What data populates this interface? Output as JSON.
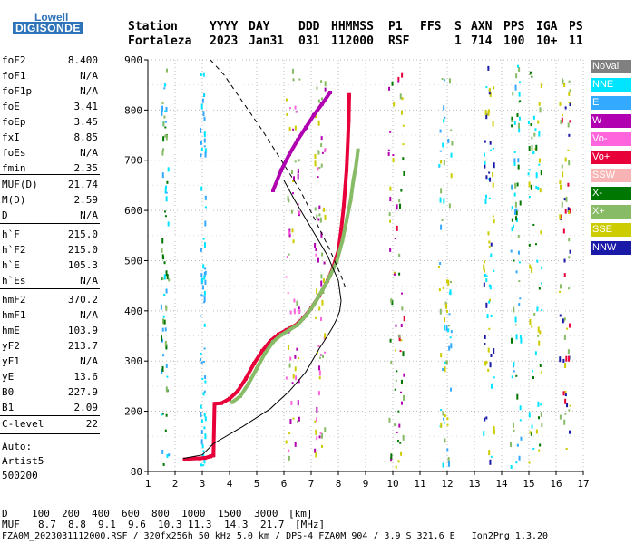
{
  "logo": {
    "line1": "Lowell",
    "line2": "DIGISONDE"
  },
  "header": {
    "col_station": {
      "label": "Station",
      "value": "Fortaleza"
    },
    "col_yyyy": {
      "label": "YYYY",
      "value": "2023"
    },
    "col_day": {
      "label": "DAY",
      "value": "Jan31"
    },
    "col_ddd": {
      "label": "DDD",
      "value": "031"
    },
    "col_hhmmss": {
      "label": "HHMMSS",
      "value": "112000"
    },
    "col_p1": {
      "label": "P1",
      "value": "RSF"
    },
    "col_ffs": {
      "label": "FFS",
      "value": ""
    },
    "col_s": {
      "label": "S",
      "value": "1"
    },
    "col_axn": {
      "label": "AXN",
      "value": "714"
    },
    "col_pps": {
      "label": "PPS",
      "value": "100"
    },
    "col_iga": {
      "label": "IGA",
      "value": "10+"
    },
    "col_ps": {
      "label": "PS",
      "value": "11"
    }
  },
  "params_group1": [
    {
      "name": "foF2",
      "value": "8.400"
    },
    {
      "name": "foF1",
      "value": "N/A"
    },
    {
      "name": "foF1p",
      "value": "N/A"
    },
    {
      "name": "foE",
      "value": "3.41"
    },
    {
      "name": "foEp",
      "value": "3.45"
    },
    {
      "name": "fxI",
      "value": "8.85"
    },
    {
      "name": "foEs",
      "value": "N/A"
    },
    {
      "name": "fmin",
      "value": "2.35"
    }
  ],
  "params_group2": [
    {
      "name": "MUF(D)",
      "value": "21.74"
    },
    {
      "name": "M(D)",
      "value": "2.59"
    },
    {
      "name": "D",
      "value": "N/A"
    }
  ],
  "params_group3": [
    {
      "name": "h`F",
      "value": "215.0"
    },
    {
      "name": "h`F2",
      "value": "215.0"
    },
    {
      "name": "h`E",
      "value": "105.3"
    },
    {
      "name": "h`Es",
      "value": "N/A"
    }
  ],
  "params_group4": [
    {
      "name": "hmF2",
      "value": "370.2"
    },
    {
      "name": "hmF1",
      "value": "N/A"
    },
    {
      "name": "hmE",
      "value": "103.9"
    },
    {
      "name": "yF2",
      "value": "213.7"
    },
    {
      "name": "yF1",
      "value": "N/A"
    },
    {
      "name": "yE",
      "value": "13.6"
    },
    {
      "name": "B0",
      "value": "227.9"
    },
    {
      "name": "B1",
      "value": "2.09"
    }
  ],
  "clevel": {
    "name": "C-level",
    "value": "22"
  },
  "autoscale": {
    "line1": "Auto:",
    "line2": "Artist5",
    "line3": "500200"
  },
  "legend": [
    {
      "label": "NoVal",
      "color": "#808080"
    },
    {
      "label": "NNE",
      "color": "#00e5ff"
    },
    {
      "label": "E",
      "color": "#33aaff"
    },
    {
      "label": "W",
      "color": "#b000b0"
    },
    {
      "label": "Vo-",
      "color": "#ff66dd"
    },
    {
      "label": "Vo+",
      "color": "#e8003a"
    },
    {
      "label": "SSW",
      "color": "#f8b4b4"
    },
    {
      "label": "X-",
      "color": "#007700"
    },
    {
      "label": "X+",
      "color": "#88bb66"
    },
    {
      "label": "SSE",
      "color": "#cccc00"
    },
    {
      "label": "NNW",
      "color": "#1a1aa8"
    }
  ],
  "dmuf": {
    "d_label": "D",
    "d_values": [
      "100",
      "200",
      "400",
      "600",
      "800",
      "1000",
      "1500",
      "3000"
    ],
    "d_unit": "[km]",
    "muf_label": "MUF",
    "muf_values": [
      "8.7",
      "8.8",
      "9.1",
      "9.6",
      "10.3",
      "11.3",
      "14.3",
      "21.7"
    ],
    "muf_unit": "[MHz]"
  },
  "footer": "FZA0M_2023031112000.RSF / 320fx256h 50 kHz 5.0 km / DPS-4 FZA0M 904 / 3.9 S 321.6 E   Ion2Png 1.3.20",
  "chart_data": {
    "type": "scatter",
    "title": "",
    "xlabel": "",
    "ylabel": "",
    "xlim": [
      1,
      17
    ],
    "ylim": [
      80,
      900
    ],
    "x_ticks": [
      1,
      2,
      3,
      4,
      5,
      6,
      7,
      8,
      9,
      10,
      11,
      12,
      13,
      14,
      15,
      16,
      17
    ],
    "y_ticks": [
      80,
      200,
      300,
      400,
      500,
      600,
      700,
      800,
      900
    ],
    "grid": true,
    "legend_position": "right",
    "series": [
      {
        "name": "Vo+",
        "color": "#e8003a",
        "x": [
          2.35,
          2.5,
          2.7,
          2.9,
          3.1,
          3.3,
          3.41,
          3.45,
          3.7,
          4.0,
          4.3,
          4.6,
          4.9,
          5.2,
          5.5,
          5.8,
          6.1,
          6.4,
          6.7,
          7.0,
          7.3,
          7.6,
          7.8,
          8.0,
          8.1,
          8.2,
          8.3,
          8.35,
          8.38,
          8.4
        ],
        "y": [
          104,
          105,
          106,
          106,
          107,
          110,
          112,
          215,
          216,
          225,
          240,
          265,
          295,
          320,
          340,
          353,
          362,
          370,
          385,
          405,
          430,
          460,
          485,
          520,
          560,
          610,
          680,
          740,
          780,
          830
        ]
      },
      {
        "name": "X+",
        "color": "#88bb66",
        "x": [
          4.1,
          4.4,
          4.7,
          5.0,
          5.3,
          5.6,
          5.9,
          6.2,
          6.5,
          6.8,
          7.1,
          7.4,
          7.7,
          7.95,
          8.15,
          8.3,
          8.45,
          8.55,
          8.65,
          8.72
        ],
        "y": [
          218,
          230,
          255,
          285,
          315,
          338,
          352,
          362,
          372,
          390,
          412,
          440,
          470,
          500,
          540,
          580,
          620,
          660,
          690,
          720
        ]
      },
      {
        "name": "W",
        "color": "#b000b0",
        "x": [
          5.6,
          5.9,
          6.2,
          6.5,
          6.8,
          7.1,
          7.4,
          7.7
        ],
        "y": [
          640,
          680,
          712,
          740,
          765,
          790,
          812,
          835
        ]
      }
    ],
    "profile_solid": {
      "x": [
        2.3,
        3.0,
        3.4,
        4.5,
        5.5,
        6.2,
        6.8,
        7.3,
        7.6,
        7.8,
        7.95,
        8.05,
        8.1,
        8.0,
        7.6,
        7.0,
        6.4,
        6.0
      ],
      "y": [
        106,
        113,
        135,
        170,
        205,
        240,
        278,
        325,
        350,
        368,
        385,
        400,
        420,
        460,
        510,
        565,
        620,
        660
      ]
    },
    "profile_dashed": {
      "x": [
        3.3,
        3.8,
        4.5,
        5.2,
        5.9,
        6.6,
        7.2,
        7.7,
        8.1,
        8.3
      ],
      "y": [
        900,
        870,
        815,
        760,
        700,
        640,
        575,
        520,
        470,
        440
      ]
    }
  }
}
